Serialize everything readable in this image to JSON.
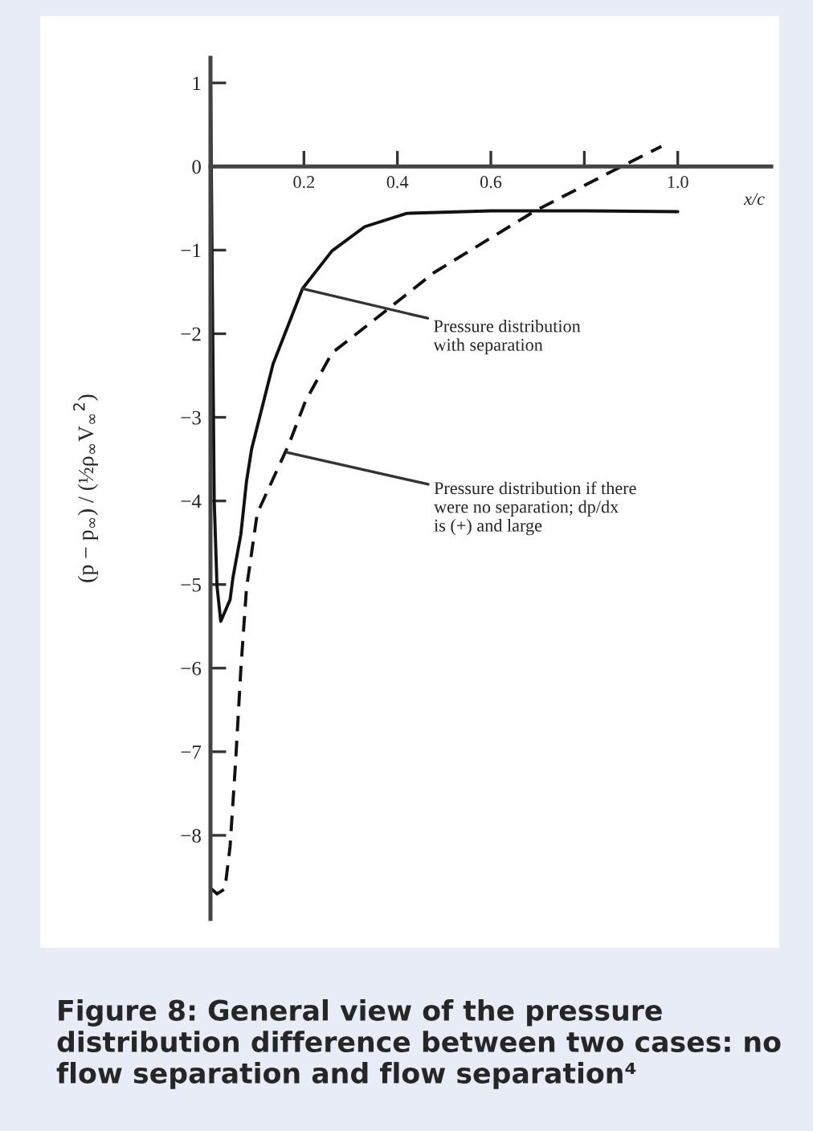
{
  "chart_data": {
    "type": "line",
    "title": "Figure 8: General view of the pressure distribution difference between two cases: no flow separation and flow separation⁴",
    "xlabel": "x/c",
    "ylabel": "(p − p$_{∞}$) / (½ρ$_{∞}$V$_{∞}$$^{2}$)",
    "series": [
      {
        "color": "#111111",
        "line_style": "solid",
        "x": [
          0,
          0.004,
          0.008,
          0.014,
          0.022,
          0.042,
          0.048,
          0.065,
          0.077,
          0.088,
          0.134,
          0.197,
          0.26,
          0.33,
          0.42,
          0.6,
          0.8,
          1.0
        ],
        "values": [
          1.2,
          -1.5,
          -4.0,
          -5.02,
          -5.44,
          -5.18,
          -4.92,
          -4.4,
          -3.77,
          -3.38,
          -2.36,
          -1.46,
          -1.01,
          -0.72,
          -0.56,
          -0.53,
          -0.53,
          -0.54
        ]
      },
      {
        "color": "#111111",
        "line_style": "dashed",
        "x": [
          0.002,
          0.014,
          0.031,
          0.042,
          0.054,
          0.065,
          0.077,
          0.1,
          0.168,
          0.203,
          0.26,
          0.363,
          0.478,
          0.695,
          0.879,
          0.965
        ],
        "values": [
          -8.64,
          -8.7,
          -8.64,
          -8.13,
          -7.1,
          -6.01,
          -5.05,
          -4.15,
          -3.32,
          -2.81,
          -2.23,
          -1.78,
          -1.27,
          -0.53,
          0.0,
          0.24
        ]
      }
    ],
    "annotations": [
      {
        "text": "Pressure distribution\nwith separation",
        "x": 0.197,
        "y": -1.46
      },
      {
        "text": "Pressure distribution if there\nwere no separation; dp/dx\nis (+) and large",
        "x": 0.163,
        "y": -3.42
      }
    ],
    "xlim": [
      0,
      1.2
    ],
    "ylim": [
      -9,
      1.3
    ],
    "xticks": [
      0.2,
      0.4,
      0.6,
      {
        "value": 0.8,
        "label": null
      },
      {
        "value": 1.0,
        "label": "1.0"
      }
    ],
    "yticks": [
      1,
      0,
      -1,
      -2,
      -3,
      -4,
      -5,
      -6,
      -7,
      -8
    ],
    "grid": false,
    "legend": false,
    "marker": "none"
  }
}
